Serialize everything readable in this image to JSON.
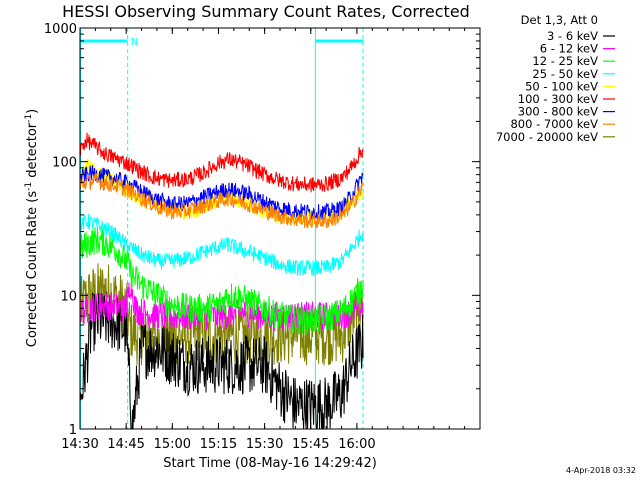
{
  "chart_data": {
    "type": "line",
    "title": "HESSI Observing Summary Count Rates, Corrected",
    "xlabel": "Start Time (08-May-16 14:29:42)",
    "ylabel": "Corrected Count Rate (s",
    "ylabel_sup1": "-1",
    "ylabel_mid": " detector",
    "ylabel_sup2": "-1",
    "ylabel_end": ")",
    "yscale": "log",
    "ylim": [
      1,
      1000
    ],
    "xlim_min": [
      870,
      1000
    ],
    "x_ticks": [
      {
        "v": 870,
        "label": "14:30"
      },
      {
        "v": 885,
        "label": "14:45"
      },
      {
        "v": 900,
        "label": "15:00"
      },
      {
        "v": 915,
        "label": "15:15"
      },
      {
        "v": 930,
        "label": "15:30"
      },
      {
        "v": 945,
        "label": "15:45"
      },
      {
        "v": 960,
        "label": "16:00"
      }
    ],
    "y_ticks": [
      {
        "v": 1,
        "label": "1"
      },
      {
        "v": 10,
        "label": "10"
      },
      {
        "v": 100,
        "label": "100"
      },
      {
        "v": 1000,
        "label": "1000"
      }
    ],
    "legend_header": "Det 1,3, Att 0",
    "legend_position": "right",
    "night_periods": [
      [
        870,
        885.5
      ],
      [
        946.5,
        962
      ]
    ],
    "n_marker": {
      "x": 886.5,
      "label": "N"
    },
    "series": [
      {
        "name": "3 - 6 keV",
        "color": "#000000",
        "points": [
          [
            870,
            1.6
          ],
          [
            874,
            6.3
          ],
          [
            878,
            6.5
          ],
          [
            882,
            6.2
          ],
          [
            885,
            5.5
          ],
          [
            887,
            1.0
          ],
          [
            890,
            4.0
          ],
          [
            895,
            4.0
          ],
          [
            900,
            3.5
          ],
          [
            905,
            3.0
          ],
          [
            910,
            3.0
          ],
          [
            915,
            3.0
          ],
          [
            920,
            3.0
          ],
          [
            925,
            3.0
          ],
          [
            930,
            3.0
          ],
          [
            935,
            2.0
          ],
          [
            940,
            1.5
          ],
          [
            945,
            1.5
          ],
          [
            950,
            1.5
          ],
          [
            955,
            1.8
          ],
          [
            958,
            3.0
          ],
          [
            962,
            4.5
          ]
        ]
      },
      {
        "name": "6 - 12 keV",
        "color": "#ff00ff",
        "points": [
          [
            870,
            7.5
          ],
          [
            872,
            7.8
          ],
          [
            875,
            8.2
          ],
          [
            878,
            8.5
          ],
          [
            882,
            8.2
          ],
          [
            885,
            8.0
          ],
          [
            886.5,
            13.0
          ],
          [
            888,
            8.0
          ],
          [
            890,
            7.5
          ],
          [
            895,
            7.2
          ],
          [
            900,
            7.0
          ],
          [
            905,
            7.0
          ],
          [
            910,
            7.0
          ],
          [
            915,
            7.0
          ],
          [
            920,
            7.2
          ],
          [
            925,
            7.5
          ],
          [
            930,
            7.0
          ],
          [
            935,
            7.0
          ],
          [
            940,
            7.0
          ],
          [
            945,
            7.0
          ],
          [
            950,
            7.0
          ],
          [
            955,
            7.2
          ],
          [
            958,
            7.5
          ],
          [
            962,
            8.0
          ]
        ]
      },
      {
        "name": "12 - 25 keV",
        "color": "#00ff00",
        "points": [
          [
            870,
            22
          ],
          [
            872,
            24
          ],
          [
            875,
            26
          ],
          [
            878,
            25
          ],
          [
            882,
            22
          ],
          [
            885,
            18
          ],
          [
            887,
            14
          ],
          [
            890,
            12
          ],
          [
            895,
            10
          ],
          [
            900,
            8.5
          ],
          [
            905,
            8.0
          ],
          [
            910,
            8.0
          ],
          [
            915,
            8.5
          ],
          [
            918,
            10
          ],
          [
            920,
            10
          ],
          [
            925,
            9
          ],
          [
            930,
            8
          ],
          [
            935,
            7
          ],
          [
            940,
            6.5
          ],
          [
            945,
            6.5
          ],
          [
            950,
            6.8
          ],
          [
            955,
            7.5
          ],
          [
            958,
            9
          ],
          [
            962,
            12
          ]
        ]
      },
      {
        "name": "25 - 50 keV",
        "color": "#00ffff",
        "points": [
          [
            870,
            33
          ],
          [
            872,
            36
          ],
          [
            875,
            34
          ],
          [
            880,
            30
          ],
          [
            885,
            24
          ],
          [
            890,
            20
          ],
          [
            895,
            18
          ],
          [
            900,
            18
          ],
          [
            905,
            19
          ],
          [
            910,
            21
          ],
          [
            915,
            23
          ],
          [
            918,
            24
          ],
          [
            920,
            23
          ],
          [
            925,
            21
          ],
          [
            930,
            19
          ],
          [
            935,
            17
          ],
          [
            940,
            16
          ],
          [
            945,
            16
          ],
          [
            950,
            16
          ],
          [
            955,
            18
          ],
          [
            958,
            22
          ],
          [
            962,
            30
          ]
        ]
      },
      {
        "name": "50 - 100 keV",
        "color": "#ffff00",
        "points": [
          [
            870,
            70
          ],
          [
            872,
            100
          ],
          [
            874,
            95
          ],
          [
            876,
            80
          ],
          [
            878,
            75
          ],
          [
            882,
            70
          ],
          [
            885,
            62
          ],
          [
            888,
            55
          ],
          [
            890,
            52
          ],
          [
            895,
            48
          ],
          [
            900,
            44
          ],
          [
            905,
            42
          ],
          [
            910,
            45
          ],
          [
            915,
            52
          ],
          [
            918,
            55
          ],
          [
            920,
            53
          ],
          [
            925,
            48
          ],
          [
            930,
            42
          ],
          [
            935,
            39
          ],
          [
            940,
            38
          ],
          [
            945,
            38
          ],
          [
            950,
            39
          ],
          [
            955,
            42
          ],
          [
            958,
            50
          ],
          [
            962,
            60
          ]
        ]
      },
      {
        "name": "100 - 300 keV",
        "color": "#ff0000",
        "points": [
          [
            870,
            120
          ],
          [
            872,
            145
          ],
          [
            874,
            135
          ],
          [
            876,
            125
          ],
          [
            878,
            115
          ],
          [
            882,
            105
          ],
          [
            885,
            98
          ],
          [
            888,
            90
          ],
          [
            890,
            84
          ],
          [
            893,
            78
          ],
          [
            895,
            75
          ],
          [
            900,
            72
          ],
          [
            905,
            74
          ],
          [
            910,
            82
          ],
          [
            915,
            98
          ],
          [
            918,
            104
          ],
          [
            920,
            102
          ],
          [
            925,
            92
          ],
          [
            930,
            80
          ],
          [
            935,
            72
          ],
          [
            940,
            68
          ],
          [
            945,
            67
          ],
          [
            950,
            68
          ],
          [
            955,
            75
          ],
          [
            958,
            90
          ],
          [
            962,
            125
          ]
        ]
      },
      {
        "name": "300 - 800 keV",
        "color": "#0000ff",
        "points": [
          [
            870,
            75
          ],
          [
            872,
            80
          ],
          [
            874,
            82
          ],
          [
            876,
            80
          ],
          [
            878,
            78
          ],
          [
            882,
            74
          ],
          [
            885,
            70
          ],
          [
            888,
            64
          ],
          [
            890,
            60
          ],
          [
            893,
            55
          ],
          [
            895,
            52
          ],
          [
            900,
            48
          ],
          [
            905,
            49
          ],
          [
            910,
            54
          ],
          [
            915,
            60
          ],
          [
            918,
            62
          ],
          [
            920,
            61
          ],
          [
            925,
            57
          ],
          [
            930,
            50
          ],
          [
            935,
            45
          ],
          [
            940,
            43
          ],
          [
            945,
            42
          ],
          [
            950,
            42
          ],
          [
            955,
            45
          ],
          [
            958,
            55
          ],
          [
            962,
            80
          ]
        ]
      },
      {
        "name": "800 - 7000 keV",
        "color": "#ff8000",
        "points": [
          [
            870,
            66
          ],
          [
            872,
            70
          ],
          [
            874,
            72
          ],
          [
            876,
            71
          ],
          [
            878,
            69
          ],
          [
            882,
            66
          ],
          [
            885,
            62
          ],
          [
            888,
            57
          ],
          [
            890,
            53
          ],
          [
            893,
            49
          ],
          [
            895,
            46
          ],
          [
            900,
            42
          ],
          [
            905,
            43
          ],
          [
            910,
            47
          ],
          [
            915,
            51
          ],
          [
            918,
            53
          ],
          [
            920,
            52
          ],
          [
            925,
            48
          ],
          [
            930,
            43
          ],
          [
            935,
            39
          ],
          [
            940,
            37
          ],
          [
            945,
            36
          ],
          [
            950,
            36
          ],
          [
            955,
            39
          ],
          [
            958,
            47
          ],
          [
            962,
            65
          ]
        ]
      },
      {
        "name": "7000 - 20000 keV",
        "color": "#808000",
        "points": [
          [
            870,
            8
          ],
          [
            872,
            9.5
          ],
          [
            875,
            10.5
          ],
          [
            878,
            11
          ],
          [
            880,
            10.5
          ],
          [
            882,
            9.5
          ],
          [
            885,
            8
          ],
          [
            886.5,
            5.5
          ],
          [
            888,
            5
          ],
          [
            890,
            5
          ],
          [
            895,
            5
          ],
          [
            900,
            5
          ],
          [
            905,
            5
          ],
          [
            910,
            5
          ],
          [
            915,
            5
          ],
          [
            920,
            5
          ],
          [
            925,
            5
          ],
          [
            930,
            5
          ],
          [
            935,
            5
          ],
          [
            940,
            5
          ],
          [
            945,
            5
          ],
          [
            950,
            5
          ],
          [
            955,
            5
          ],
          [
            958,
            6.5
          ],
          [
            962,
            9
          ]
        ]
      }
    ]
  },
  "footer_date": "4-Apr-2018 03:32"
}
